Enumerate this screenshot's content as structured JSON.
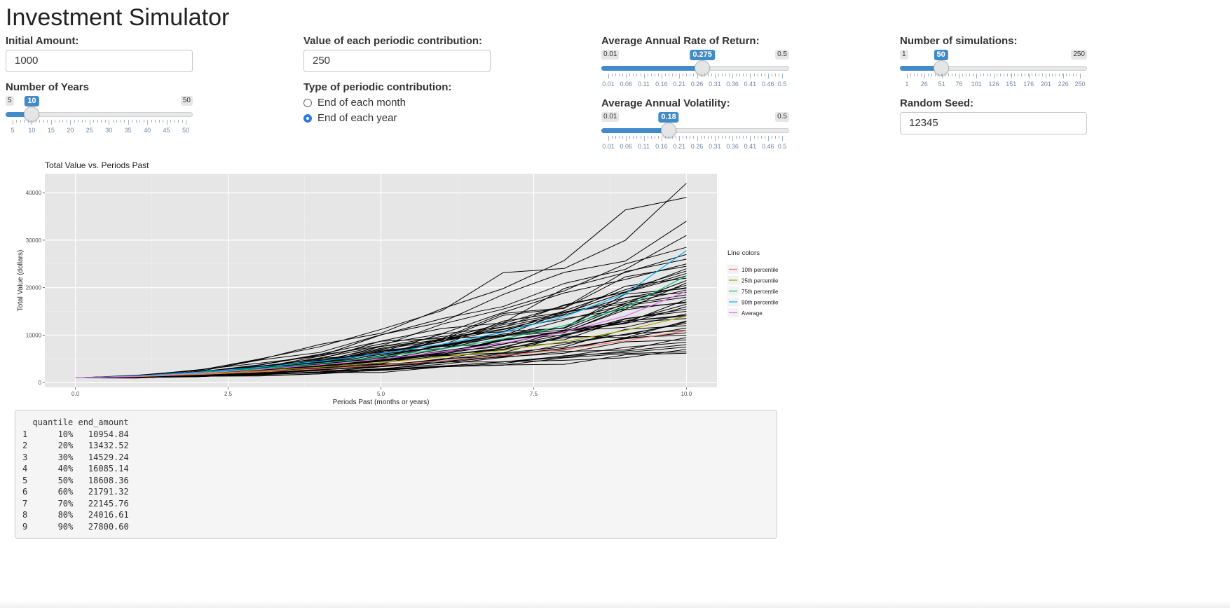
{
  "page_title": "Investment Simulator",
  "inputs": {
    "initial_amount": {
      "label": "Initial Amount:",
      "value": "1000"
    },
    "contribution": {
      "label": "Value of each periodic contribution:",
      "value": "250"
    },
    "years": {
      "label": "Number of Years",
      "min": "5",
      "max": "50",
      "value": "10",
      "ticks": [
        "5",
        "10",
        "15",
        "20",
        "25",
        "30",
        "35",
        "40",
        "45",
        "50"
      ]
    },
    "contribution_type": {
      "label": "Type of periodic contribution:",
      "options": [
        {
          "label": "End of each month",
          "selected": false
        },
        {
          "label": "End of each year",
          "selected": true
        }
      ]
    },
    "return_rate": {
      "label": "Average Annual Rate of Return:",
      "min": "0.01",
      "max": "0.5",
      "value": "0.275",
      "ticks": [
        "0.01",
        "0.06",
        "0.11",
        "0.16",
        "0.21",
        "0.26",
        "0.31",
        "0.36",
        "0.41",
        "0.46",
        "0.5"
      ]
    },
    "volatility": {
      "label": "Average Annual Volatility:",
      "min": "0.01",
      "max": "0.5",
      "value": "0.18",
      "ticks": [
        "0.01",
        "0.06",
        "0.11",
        "0.16",
        "0.21",
        "0.26",
        "0.31",
        "0.36",
        "0.41",
        "0.46",
        "0.5"
      ]
    },
    "simulations": {
      "label": "Number of simulations:",
      "min": "1",
      "max": "250",
      "value": "50",
      "ticks": [
        "1",
        "26",
        "51",
        "76",
        "101",
        "126",
        "151",
        "176",
        "201",
        "226",
        "250"
      ]
    },
    "seed": {
      "label": "Random Seed:",
      "value": "12345"
    }
  },
  "chart_data": {
    "type": "line",
    "title": "Total Value vs. Periods Past",
    "xlabel": "Periods Past (months or years)",
    "ylabel": "Total Value (dollars)",
    "xlim": [
      -0.5,
      10.5
    ],
    "ylim": [
      -1000,
      44000
    ],
    "x_ticks": [
      0,
      2.5,
      5,
      7.5,
      10
    ],
    "x_tick_labels": [
      "0.0",
      "2.5",
      "5.0",
      "7.5",
      "10.0"
    ],
    "y_ticks": [
      0,
      10000,
      20000,
      30000,
      40000
    ],
    "y_tick_labels": [
      "0",
      "10000",
      "20000",
      "30000",
      "40000"
    ],
    "grid": true,
    "legend": {
      "title": "Line colors",
      "placement": "right",
      "entries": [
        {
          "name": "10th percentile",
          "color": "#f8766d"
        },
        {
          "name": "25th percentile",
          "color": "#a3a500"
        },
        {
          "name": "75th percentile",
          "color": "#00bf7d"
        },
        {
          "name": "90th percentile",
          "color": "#00b0f6"
        },
        {
          "name": "Average",
          "color": "#e76bf3"
        }
      ]
    },
    "x": [
      0,
      1,
      2,
      3,
      4,
      5,
      6,
      7,
      8,
      9,
      10
    ],
    "simulation_endpoints": [
      42000,
      39000,
      34000,
      31000,
      28500,
      27000,
      26000,
      25000,
      24500,
      24000,
      23500,
      23000,
      22500,
      22000,
      21500,
      21000,
      20500,
      20000,
      19500,
      19000,
      18500,
      18000,
      17500,
      17000,
      16500,
      16000,
      15500,
      15000,
      14500,
      14000,
      13500,
      13000,
      12800,
      12500,
      12000,
      11500,
      11000,
      10500,
      10000,
      9500,
      9000,
      8500,
      8000,
      7500,
      7000,
      6500,
      6200,
      16800,
      19800,
      14200
    ],
    "series": [
      {
        "name": "10th percentile",
        "color": "#f8766d",
        "values": [
          1000,
          1260,
          1700,
          2250,
          2900,
          3650,
          4600,
          5700,
          7000,
          8800,
          10955
        ]
      },
      {
        "name": "25th percentile",
        "color": "#a3a500",
        "values": [
          1000,
          1290,
          1800,
          2450,
          3250,
          4200,
          5400,
          6800,
          8600,
          11000,
          14000
        ]
      },
      {
        "name": "75th percentile",
        "color": "#00bf7d",
        "values": [
          1000,
          1360,
          2050,
          2950,
          4050,
          5400,
          7100,
          9200,
          12000,
          15800,
          22500
        ]
      },
      {
        "name": "90th percentile",
        "color": "#00b0f6",
        "values": [
          1000,
          1400,
          2200,
          3200,
          4500,
          6100,
          8100,
          10600,
          13900,
          18700,
          27800
        ]
      },
      {
        "name": "Average",
        "color": "#e76bf3",
        "values": [
          1000,
          1330,
          1950,
          2750,
          3750,
          4950,
          6450,
          8300,
          10700,
          14000,
          19200
        ]
      }
    ]
  },
  "summary_table": {
    "header": "  quantile end_amount",
    "rows": [
      "1      10%   10954.84",
      "2      20%   13432.52",
      "3      30%   14529.24",
      "4      40%   16085.14",
      "5      50%   18608.36",
      "6      60%   21791.32",
      "7      70%   22145.76",
      "8      80%   24016.61",
      "9      90%   27800.60"
    ]
  }
}
